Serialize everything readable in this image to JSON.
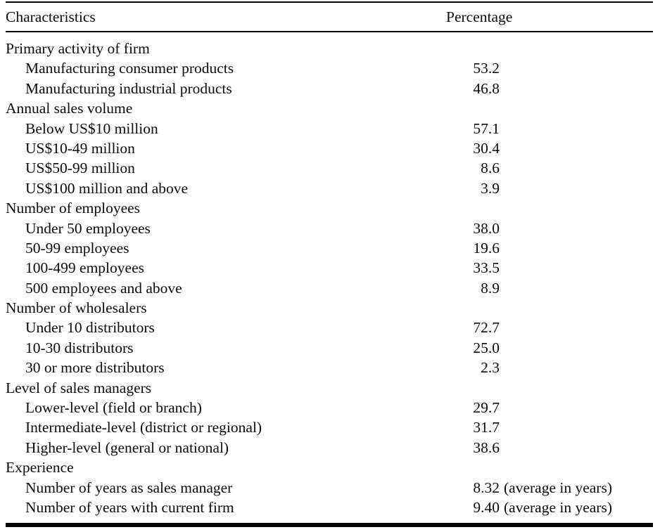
{
  "table": {
    "header": {
      "characteristics": "Characteristics",
      "percentage": "Percentage"
    },
    "sections": [
      {
        "title": "Primary activity of firm",
        "rows": [
          {
            "label": "Manufacturing consumer products",
            "value": "53.2",
            "suffix": ""
          },
          {
            "label": "Manufacturing industrial products",
            "value": "46.8",
            "suffix": ""
          }
        ]
      },
      {
        "title": "Annual sales volume",
        "rows": [
          {
            "label": "Below US$10 million",
            "value": "57.1",
            "suffix": ""
          },
          {
            "label": "US$10-49 million",
            "value": "30.4",
            "suffix": ""
          },
          {
            "label": "US$50-99 million",
            "value": "8.6",
            "suffix": ""
          },
          {
            "label": "US$100 million and above",
            "value": "3.9",
            "suffix": ""
          }
        ]
      },
      {
        "title": "Number of employees",
        "rows": [
          {
            "label": "Under 50 employees",
            "value": "38.0",
            "suffix": ""
          },
          {
            "label": "50-99 employees",
            "value": "19.6",
            "suffix": ""
          },
          {
            "label": "100-499 employees",
            "value": "33.5",
            "suffix": ""
          },
          {
            "label": "500 employees and above",
            "value": "8.9",
            "suffix": ""
          }
        ]
      },
      {
        "title": "Number of wholesalers",
        "rows": [
          {
            "label": "Under 10 distributors",
            "value": "72.7",
            "suffix": ""
          },
          {
            "label": "10-30 distributors",
            "value": "25.0",
            "suffix": ""
          },
          {
            "label": "30 or more distributors",
            "value": "2.3",
            "suffix": ""
          }
        ]
      },
      {
        "title": "Level of sales managers",
        "rows": [
          {
            "label": "Lower-level (field or branch)",
            "value": "29.7",
            "suffix": ""
          },
          {
            "label": "Intermediate-level (district or regional)",
            "value": "31.7",
            "suffix": ""
          },
          {
            "label": "Higher-level (general or national)",
            "value": "38.6",
            "suffix": ""
          }
        ]
      },
      {
        "title": "Experience",
        "rows": [
          {
            "label": "Number of years as sales manager",
            "value": "8.32",
            "suffix": "(average in years)"
          },
          {
            "label": "Number of years with current firm",
            "value": "9.40",
            "suffix": "(average in years)"
          }
        ]
      }
    ]
  }
}
